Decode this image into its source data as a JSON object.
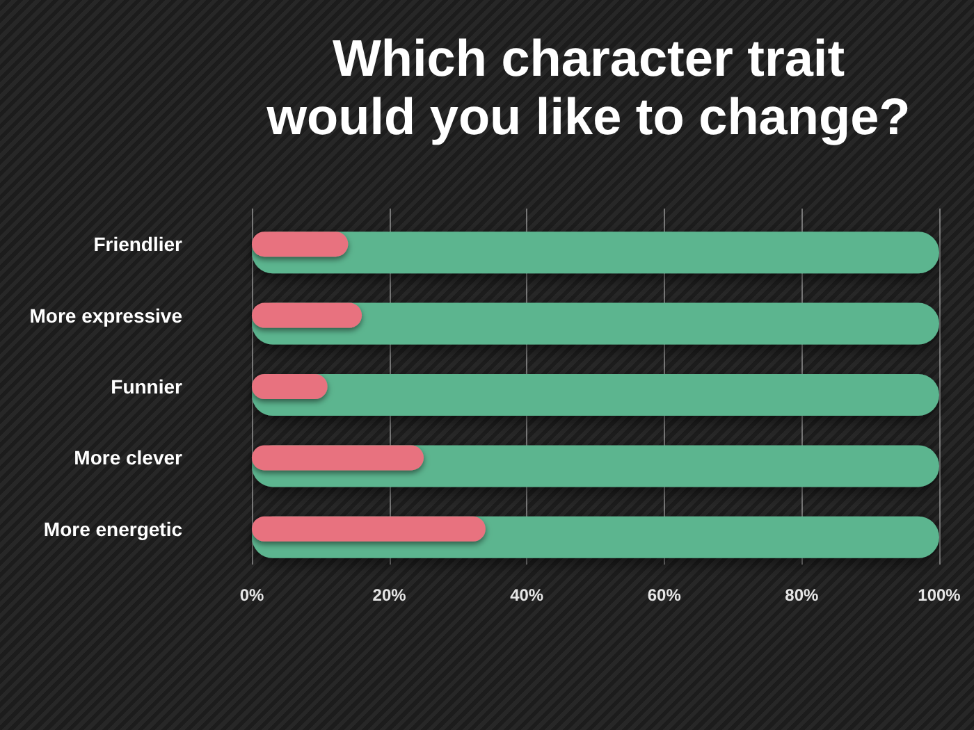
{
  "chart_data": {
    "type": "bar",
    "orientation": "horizontal",
    "title": "Which character trait would you like to change?",
    "categories": [
      "Friendlier",
      "More expressive",
      "Funnier",
      "More clever",
      "More energetic"
    ],
    "series": [
      {
        "color": "#5cb58f",
        "values": [
          100,
          100,
          100,
          100,
          100
        ]
      },
      {
        "color": "#e8727f",
        "values": [
          14,
          16,
          11,
          25,
          34
        ]
      }
    ],
    "xlim": [
      0,
      100
    ],
    "xticks": [
      {
        "value": 0,
        "label": "0%"
      },
      {
        "value": 20,
        "label": "20%"
      },
      {
        "value": 40,
        "label": "40%"
      },
      {
        "value": 60,
        "label": "60%"
      },
      {
        "value": 80,
        "label": "80%"
      },
      {
        "value": 100,
        "label": "100%"
      }
    ],
    "grid": "x"
  }
}
